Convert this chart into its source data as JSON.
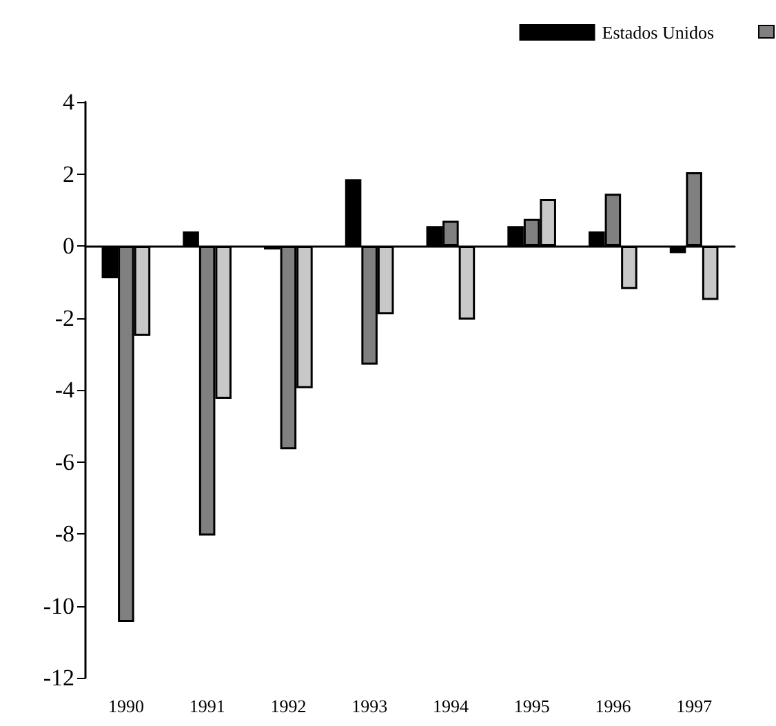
{
  "chart_data": {
    "type": "bar",
    "categories": [
      "1990",
      "1991",
      "1992",
      "1993",
      "1994",
      "1995",
      "1996",
      "1997"
    ],
    "series": [
      {
        "name": "Estados Unidos",
        "color": "#000000",
        "values": [
          -0.9,
          0.4,
          -0.1,
          1.85,
          0.55,
          0.55,
          0.4,
          -0.2
        ]
      },
      {
        "color": "#808080",
        "values": [
          -10.45,
          -8.05,
          -5.65,
          -3.3,
          0.7,
          0.75,
          1.45,
          2.05
        ]
      },
      {
        "color": "#c8c8c8",
        "values": [
          -2.5,
          -4.25,
          -3.95,
          -1.9,
          -2.05,
          1.3,
          -1.2,
          -1.5
        ]
      }
    ],
    "ylim": [
      -12,
      4
    ],
    "yticks": [
      -12,
      -10,
      -8,
      -6,
      -4,
      -2,
      0,
      2,
      4
    ],
    "legend": "top right"
  }
}
